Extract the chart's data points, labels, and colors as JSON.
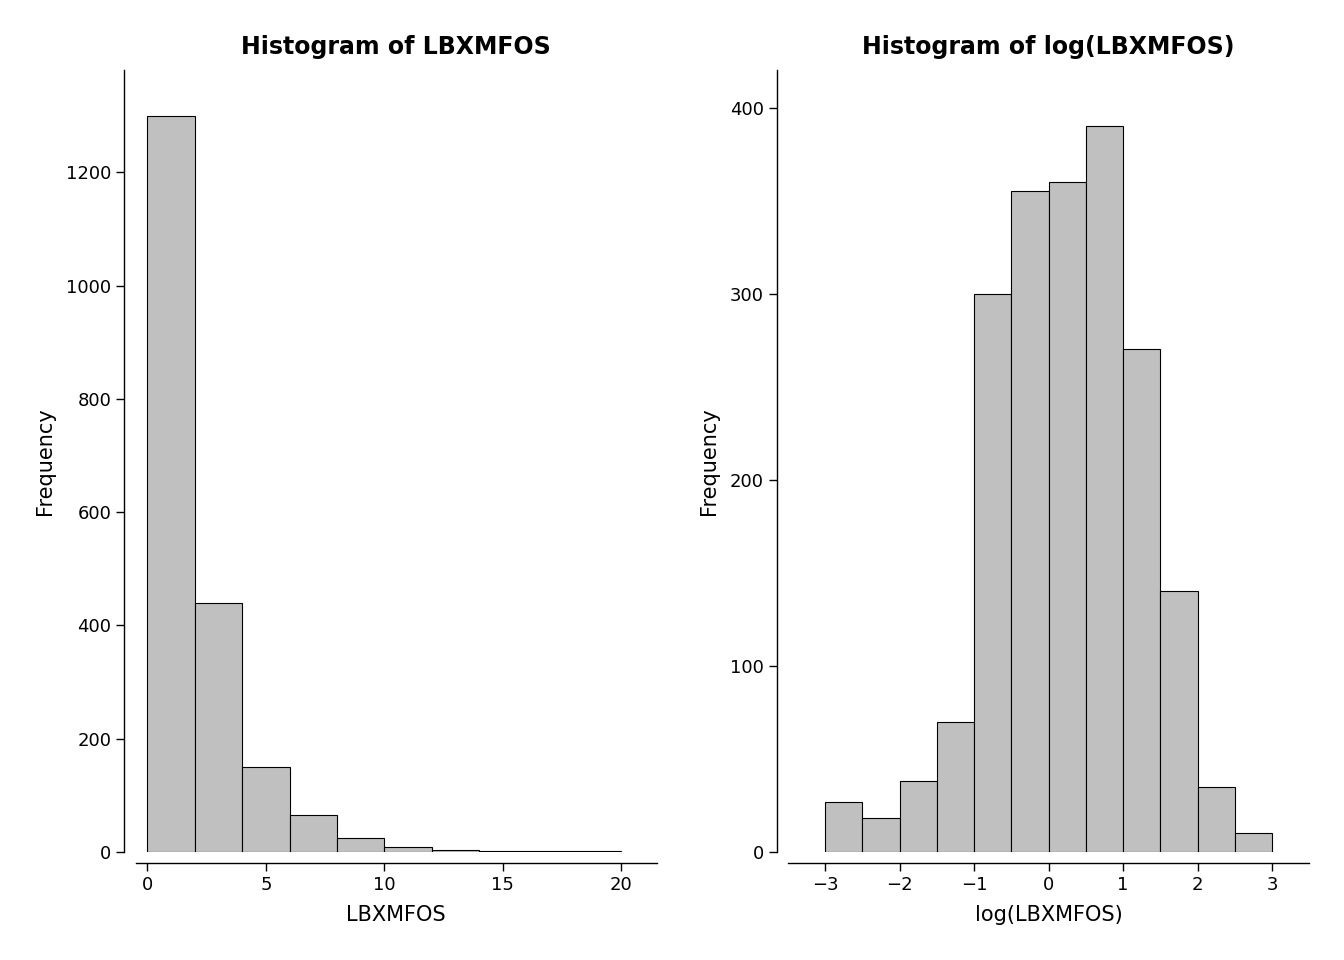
{
  "left_title": "Histogram of LBXMFOS",
  "right_title": "Histogram of log(LBXMFOS)",
  "left_xlabel": "LBXMFOS",
  "right_xlabel": "log(LBXMFOS)",
  "ylabel": "Frequency",
  "bar_color": "#c0c0c0",
  "bar_edgecolor": "#000000",
  "left_bins": [
    0,
    2,
    4,
    6,
    8,
    10,
    12,
    14,
    16,
    18,
    20
  ],
  "left_heights": [
    1300,
    440,
    150,
    65,
    25,
    8,
    3,
    2,
    1,
    1
  ],
  "left_xlim": [
    -0.5,
    21.5
  ],
  "left_ylim": [
    0,
    1380
  ],
  "left_yticks": [
    0,
    200,
    400,
    600,
    800,
    1000,
    1200
  ],
  "left_xticks": [
    0,
    5,
    10,
    15,
    20
  ],
  "right_bins": [
    -3.0,
    -2.5,
    -2.0,
    -1.5,
    -1.0,
    -0.5,
    0.0,
    0.5,
    1.0,
    1.5,
    2.0,
    2.5,
    3.0
  ],
  "right_heights": [
    27,
    18,
    38,
    70,
    300,
    355,
    360,
    390,
    270,
    140,
    35,
    10
  ],
  "right_xlim": [
    -3.5,
    3.5
  ],
  "right_ylim": [
    0,
    420
  ],
  "right_yticks": [
    0,
    100,
    200,
    300,
    400
  ],
  "right_xticks": [
    -3,
    -2,
    -1,
    0,
    1,
    2,
    3
  ],
  "title_fontsize": 17,
  "axis_fontsize": 15,
  "tick_fontsize": 13,
  "bg_color": "#ffffff"
}
